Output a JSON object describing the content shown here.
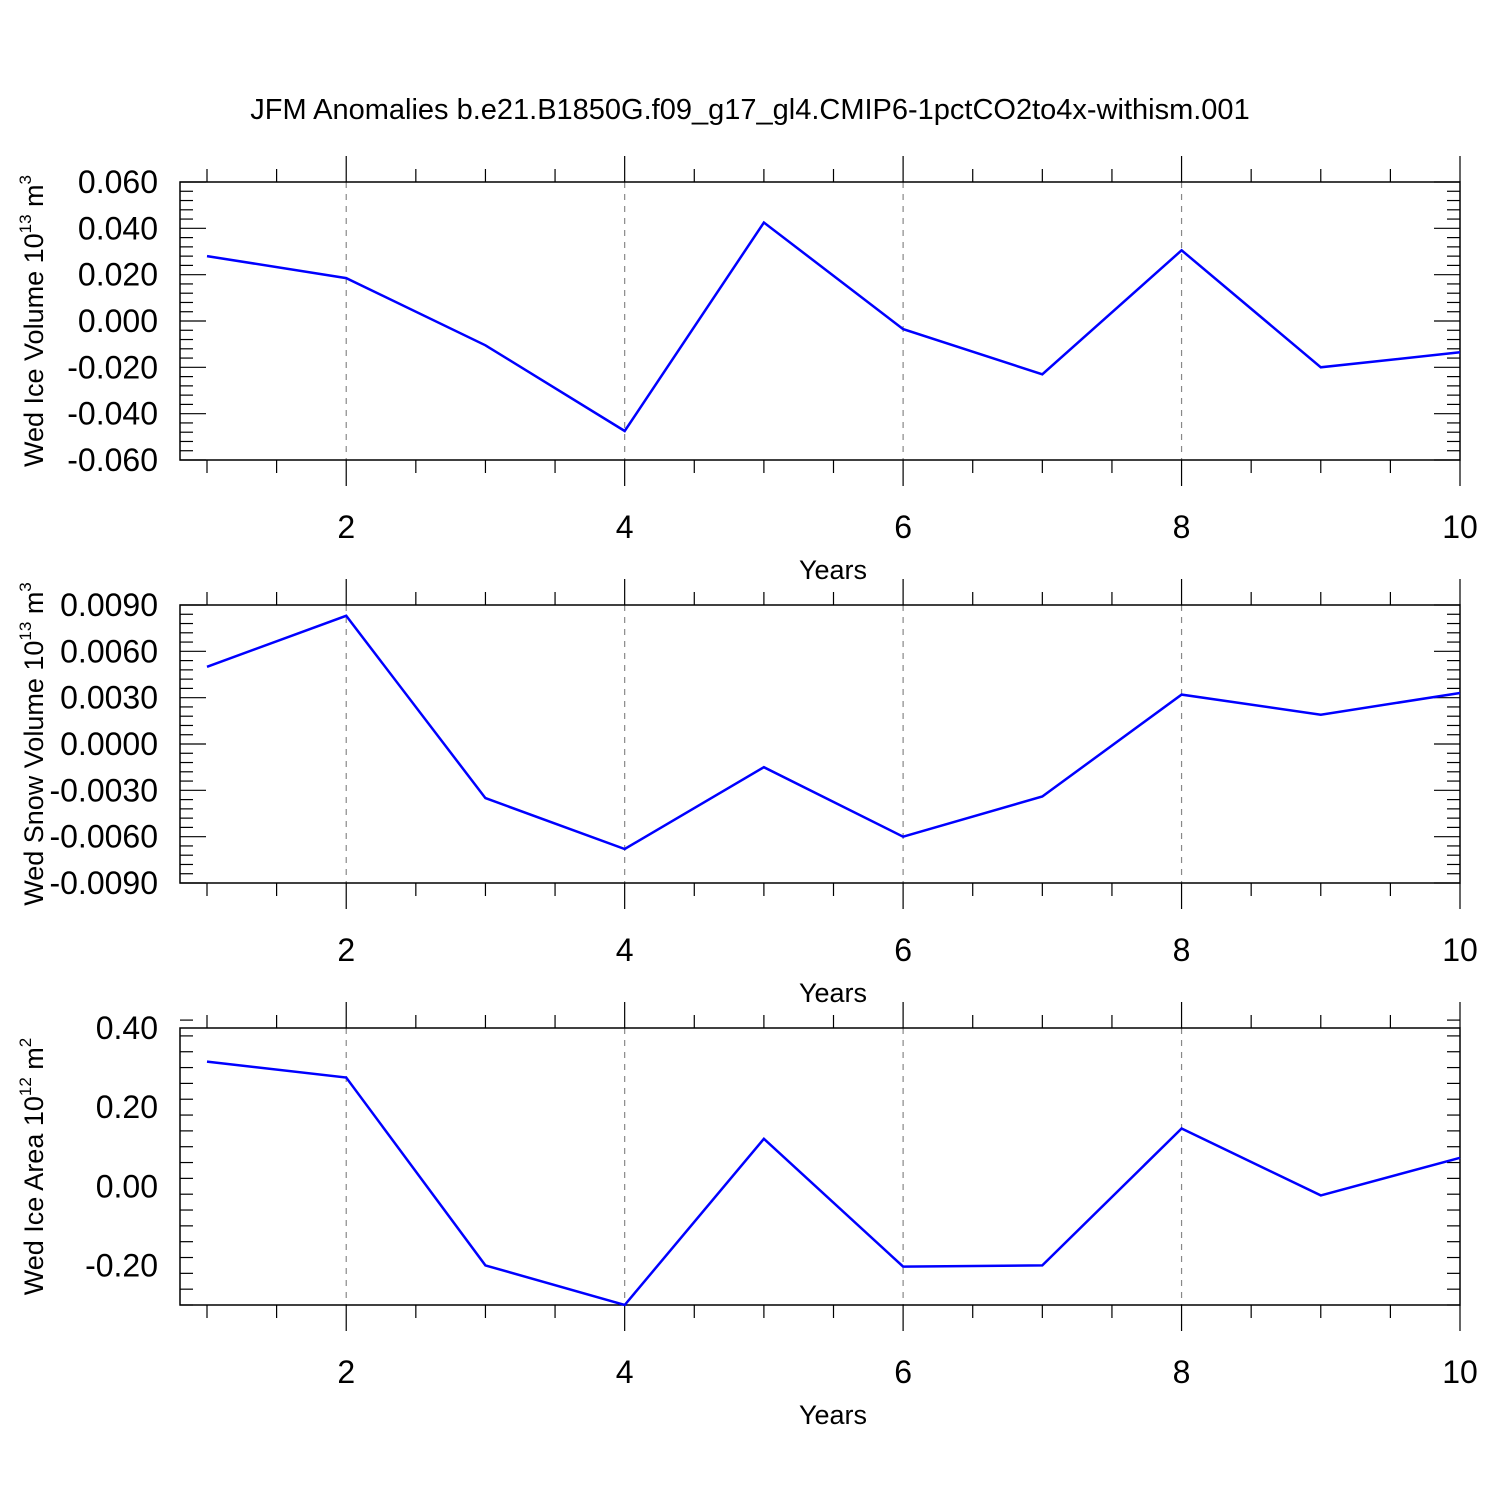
{
  "title": "JFM Anomalies b.e21.B1850G.f09_g17_gl4.CMIP6-1pctCO2to4x-withism.001",
  "colors": {
    "line": "#0000ff",
    "grid": "#888888",
    "frame": "#000000"
  },
  "chart_data": [
    {
      "type": "line",
      "title": "",
      "xlabel": "Years",
      "ylabel": {
        "text": "Wed Ice Volume 10",
        "exponent": "13",
        "unit": " m",
        "unit_exponent": "3"
      },
      "xlim": [
        1,
        10
      ],
      "ylim": [
        -0.06,
        0.06
      ],
      "x_ticks": [
        2,
        4,
        6,
        8,
        10
      ],
      "x_tick_labels": [
        "2",
        "4",
        "6",
        "8",
        "10"
      ],
      "y_ticks": [
        -0.06,
        -0.04,
        -0.02,
        0.0,
        0.02,
        0.04,
        0.06
      ],
      "y_tick_labels": [
        "-0.060",
        "-0.040",
        "-0.020",
        "0.000",
        "0.020",
        "0.040",
        "0.060"
      ],
      "grid": "x-dashed",
      "series": [
        {
          "x": [
            1,
            2,
            3,
            4,
            5,
            6,
            7,
            8,
            9,
            10
          ],
          "values": [
            0.028,
            0.0185,
            -0.0105,
            -0.0475,
            0.0425,
            -0.0035,
            -0.023,
            0.0305,
            -0.02,
            -0.0135
          ]
        }
      ]
    },
    {
      "type": "line",
      "title": "",
      "xlabel": "Years",
      "ylabel": {
        "text": "Wed Snow Volume 10",
        "exponent": "13",
        "unit": " m",
        "unit_exponent": "3"
      },
      "xlim": [
        1,
        10
      ],
      "ylim": [
        -0.009,
        0.009
      ],
      "x_ticks": [
        2,
        4,
        6,
        8,
        10
      ],
      "x_tick_labels": [
        "2",
        "4",
        "6",
        "8",
        "10"
      ],
      "y_ticks": [
        -0.009,
        -0.006,
        -0.003,
        0.0,
        0.003,
        0.006,
        0.009
      ],
      "y_tick_labels": [
        "-0.0090",
        "-0.0060",
        "-0.0030",
        "0.0000",
        "0.0030",
        "0.0060",
        "0.0090"
      ],
      "grid": "x-dashed",
      "series": [
        {
          "x": [
            1,
            2,
            3,
            4,
            5,
            6,
            7,
            8,
            9,
            10
          ],
          "values": [
            0.005,
            0.0083,
            -0.0035,
            -0.0068,
            -0.0015,
            -0.006,
            -0.0034,
            0.0032,
            0.0019,
            0.0033
          ]
        }
      ]
    },
    {
      "type": "line",
      "title": "",
      "xlabel": "Years",
      "ylabel": {
        "text": "Wed Ice Area 10",
        "exponent": "12",
        "unit": " m",
        "unit_exponent": "2"
      },
      "xlim": [
        1,
        10
      ],
      "ylim": [
        -0.3,
        0.4
      ],
      "x_ticks": [
        2,
        4,
        6,
        8,
        10
      ],
      "x_tick_labels": [
        "2",
        "4",
        "6",
        "8",
        "10"
      ],
      "y_ticks": [
        -0.2,
        0.0,
        0.2,
        0.4
      ],
      "y_tick_labels": [
        "-0.20",
        "0.00",
        "0.20",
        "0.40"
      ],
      "grid": "x-dashed",
      "series": [
        {
          "x": [
            1,
            2,
            3,
            4,
            5,
            6,
            7,
            8,
            9,
            10
          ],
          "values": [
            0.315,
            0.275,
            -0.2,
            -0.3,
            0.12,
            -0.203,
            -0.2,
            0.146,
            -0.023,
            0.072
          ]
        }
      ]
    }
  ]
}
